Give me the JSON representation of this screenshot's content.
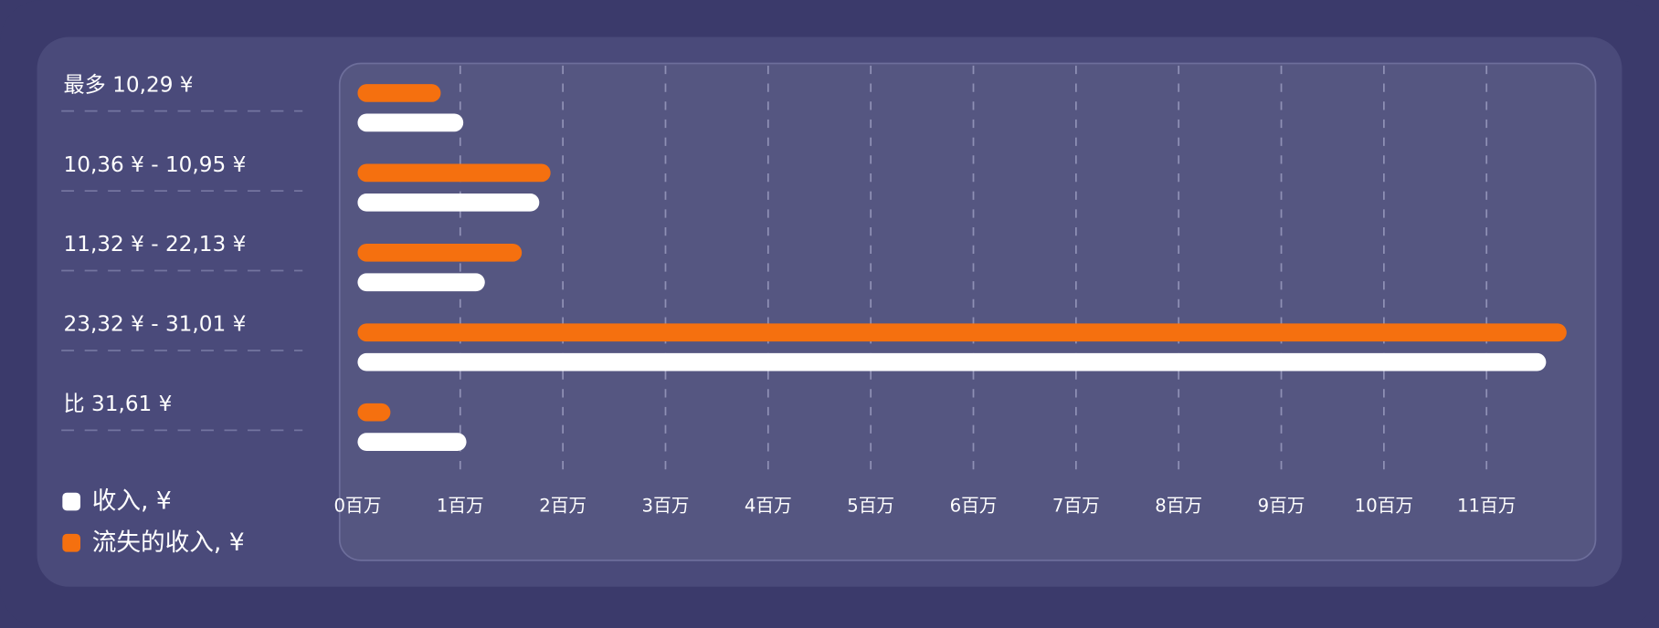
{
  "chart_data": {
    "type": "bar",
    "orientation": "horizontal",
    "categories": [
      "最多 10,29 ¥",
      "10,36 ¥ - 10,95 ¥",
      "11,32 ¥ - 22,13 ¥",
      "23,32 ¥ - 31,01 ¥",
      "比 31,61 ¥"
    ],
    "series": [
      {
        "name": "流失的收入, ¥",
        "color": "#f5700f",
        "values": [
          0.81,
          1.88,
          1.6,
          11.78,
          0.32
        ]
      },
      {
        "name": "收入, ¥",
        "color": "#ffffff",
        "values": [
          1.03,
          1.77,
          1.24,
          11.58,
          1.06
        ]
      }
    ],
    "legend_order": [
      1,
      0
    ],
    "xlim": [
      0,
      11.85
    ],
    "xticks": [
      {
        "value": 0,
        "label": "0百万"
      },
      {
        "value": 1,
        "label": "1百万"
      },
      {
        "value": 2,
        "label": "2百万"
      },
      {
        "value": 3,
        "label": "3百万"
      },
      {
        "value": 4,
        "label": "4百万"
      },
      {
        "value": 5,
        "label": "5百万"
      },
      {
        "value": 6,
        "label": "6百万"
      },
      {
        "value": 7,
        "label": "7百万"
      },
      {
        "value": 8,
        "label": "8百万"
      },
      {
        "value": 9,
        "label": "9百万"
      },
      {
        "value": 10,
        "label": "10百万"
      },
      {
        "value": 11,
        "label": "11百万"
      }
    ],
    "grid": true
  }
}
